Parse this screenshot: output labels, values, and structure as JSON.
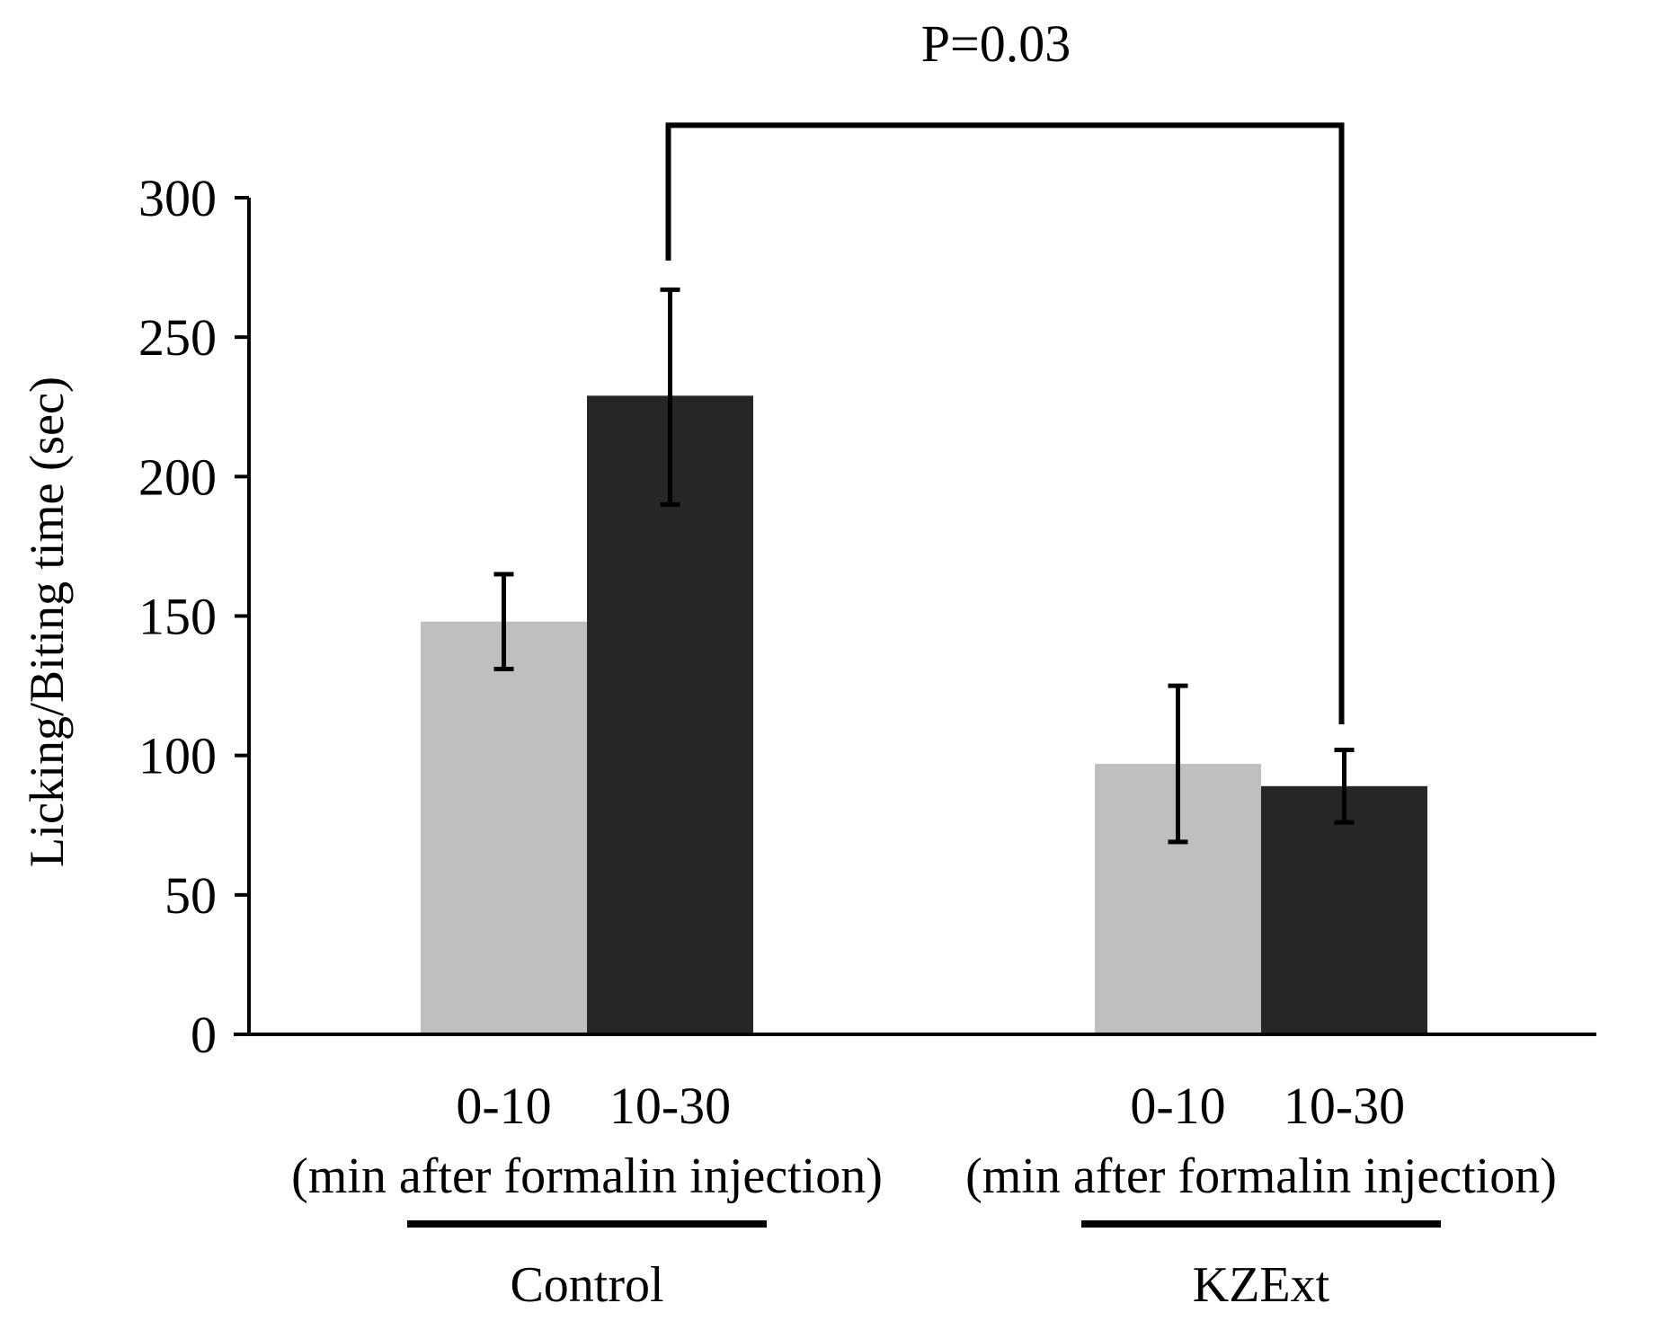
{
  "chart_data": {
    "type": "bar",
    "title": "",
    "ylabel": "Licking/Biting time (sec)",
    "xlabel": "(min after formalin injection)",
    "ylim": [
      0,
      300
    ],
    "yticks": [
      "0",
      "50",
      "100",
      "150",
      "200",
      "250",
      "300"
    ],
    "groups": [
      {
        "name": "Control",
        "sublabel": "(min after formalin injection)",
        "bars": [
          {
            "category": "0-10",
            "value": 148,
            "err_low": 131,
            "err_high": 165,
            "color": "#bfbfbf"
          },
          {
            "category": "10-30",
            "value": 229,
            "err_low": 190,
            "err_high": 267,
            "color": "#262626"
          }
        ]
      },
      {
        "name": "KZExt",
        "sublabel": "(min after formalin injection)",
        "bars": [
          {
            "category": "0-10",
            "value": 97,
            "err_low": 69,
            "err_high": 125,
            "color": "#bfbfbf"
          },
          {
            "category": "10-30",
            "value": 89,
            "err_low": 76,
            "err_high": 102,
            "color": "#262626"
          }
        ]
      }
    ],
    "significance": {
      "label": "P=0.03",
      "from": "Control 10-30",
      "to": "KZExt 10-30",
      "bracket_value": 326
    }
  }
}
